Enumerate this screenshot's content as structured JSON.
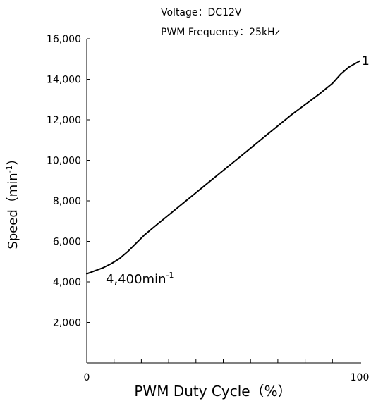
{
  "chart_data": {
    "type": "line",
    "subtitle_lines": [
      "Voltage：DC12V",
      "PWM Frequency：25kHz"
    ],
    "xlabel": "PWM Duty Cycle（%）",
    "ylabel_main": "Speed（min",
    "ylabel_sup": "-1",
    "ylabel_tail": "）",
    "xlim": [
      0,
      100
    ],
    "ylim": [
      0,
      16000
    ],
    "x_tick_labels": [
      "0",
      "100"
    ],
    "y_tick_labels": [
      "2,000",
      "4,000",
      "6,000",
      "8,000",
      "10,000",
      "12,000",
      "14,000",
      "16,000"
    ],
    "grid": false,
    "series": [
      {
        "x": [
          0,
          3,
          6,
          9,
          12,
          15,
          18,
          21,
          25,
          30,
          35,
          40,
          45,
          50,
          55,
          60,
          65,
          70,
          75,
          80,
          85,
          90,
          93,
          96,
          100
        ],
        "y": [
          4400,
          4550,
          4700,
          4900,
          5150,
          5500,
          5900,
          6300,
          6750,
          7300,
          7850,
          8400,
          8950,
          9500,
          10050,
          10600,
          11150,
          11700,
          12250,
          12750,
          13250,
          13800,
          14250,
          14600,
          14900
        ]
      }
    ],
    "annotations": [
      {
        "label": "4,400min",
        "sup": "-1"
      },
      {
        "label": "1"
      }
    ],
    "color": "#000000"
  }
}
